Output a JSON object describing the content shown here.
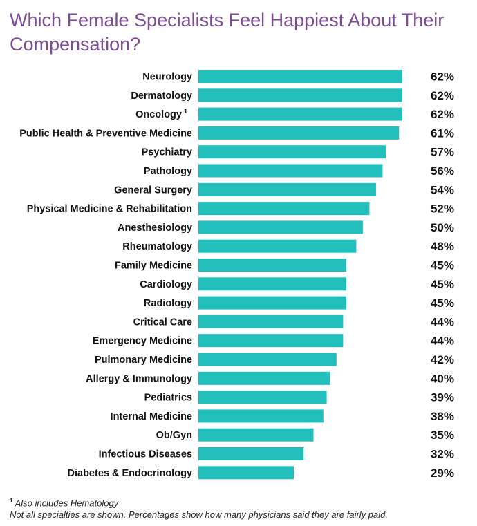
{
  "title": "Which Female Specialists Feel Happiest About Their Compensation?",
  "colors": {
    "bar": "#22bfbd",
    "title": "#7b4b94",
    "text": "#111111"
  },
  "footnotes": {
    "marker": "1",
    "line1": "Also includes Hematology",
    "line2": "Not all specialties are shown. Percentages show how many physicians said they are fairly paid."
  },
  "chart_data": {
    "type": "bar",
    "orientation": "horizontal",
    "title": "Which Female Specialists Feel Happiest About Their Compensation?",
    "unit": "%",
    "categories": [
      "Neurology",
      "Dermatology",
      "Oncology",
      "Public Health & Preventive Medicine",
      "Psychiatry",
      "Pathology",
      "General Surgery",
      "Physical Medicine & Rehabilitation",
      "Anesthesiology",
      "Rheumatology",
      "Family Medicine",
      "Cardiology",
      "Radiology",
      "Critical Care",
      "Emergency Medicine",
      "Pulmonary Medicine",
      "Allergy & Immunology",
      "Pediatrics",
      "Internal Medicine",
      "Ob/Gyn",
      "Infectious Diseases",
      "Diabetes & Endocrinology"
    ],
    "category_superscripts": {
      "Oncology": "1"
    },
    "values": [
      62,
      62,
      62,
      61,
      57,
      56,
      54,
      52,
      50,
      48,
      45,
      45,
      45,
      44,
      44,
      42,
      40,
      39,
      38,
      35,
      32,
      29
    ],
    "value_labels": [
      "62%",
      "62%",
      "62%",
      "61%",
      "57%",
      "56%",
      "54%",
      "52%",
      "50%",
      "48%",
      "45%",
      "45%",
      "45%",
      "44%",
      "44%",
      "42%",
      "40%",
      "39%",
      "38%",
      "35%",
      "32%",
      "29%"
    ],
    "xlim": [
      0,
      62
    ],
    "grid": false,
    "legend": "none"
  }
}
